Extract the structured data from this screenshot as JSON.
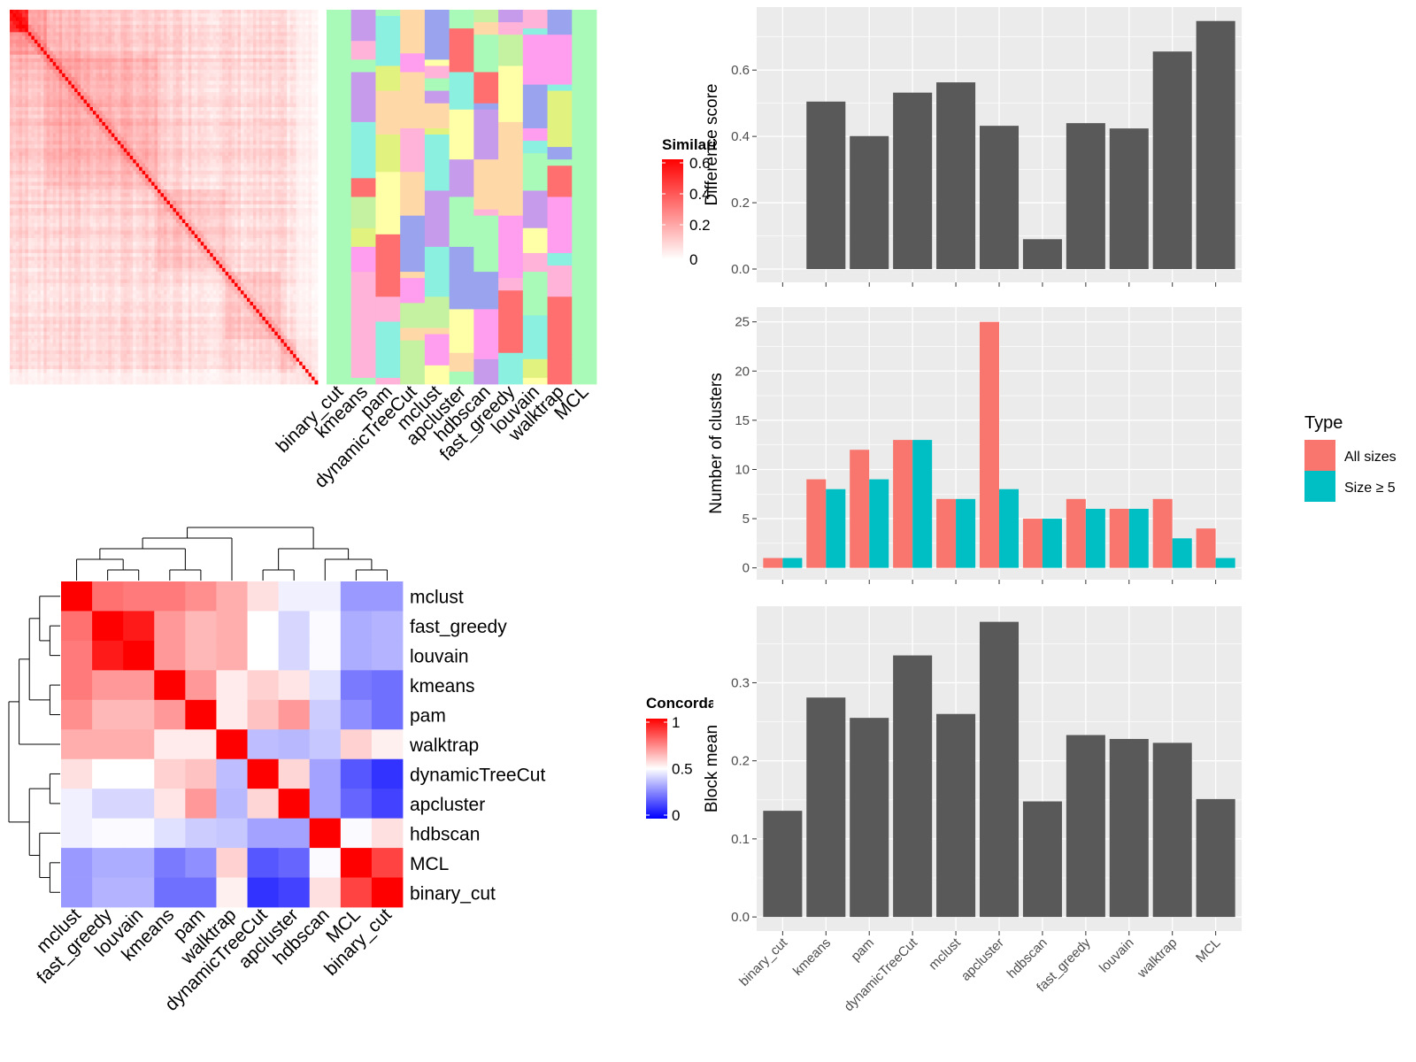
{
  "colors": {
    "panel_bg": "#EBEBEB",
    "grid": "#FFFFFF",
    "bar": "#595959",
    "all_sizes": "#F8766D",
    "size_ge5": "#00BFC4",
    "similarity_high": "#FF0000",
    "concordance_high": "#FF0000",
    "concordance_mid": "#FFFFFF",
    "concordance_low": "#0000FF"
  },
  "similarity_legend": {
    "title": "Similarity",
    "ticks": [
      "0",
      "0.2",
      "0.4",
      "0.6"
    ]
  },
  "concordance_legend": {
    "title": "Concordance",
    "ticks": [
      "0",
      "0.5",
      "1"
    ]
  },
  "label_heatmap_methods": [
    "binary_cut",
    "kmeans",
    "pam",
    "dynamicTreeCut",
    "mclust",
    "apcluster",
    "hdbscan",
    "fast_greedy",
    "louvain",
    "walktrap",
    "MCL"
  ],
  "chart_data": [
    {
      "type": "heatmap",
      "name": "similarity-matrix",
      "size": 100,
      "value_range": [
        0,
        0.6
      ],
      "diagonal_value": 0.6
    },
    {
      "type": "heatmap",
      "name": "concordance-matrix",
      "rows": [
        "mclust",
        "fast_greedy",
        "louvain",
        "kmeans",
        "pam",
        "walktrap",
        "dynamicTreeCut",
        "apcluster",
        "hdbscan",
        "MCL",
        "binary_cut"
      ],
      "columns": [
        "mclust",
        "fast_greedy",
        "louvain",
        "kmeans",
        "pam",
        "walktrap",
        "dynamicTreeCut",
        "apcluster",
        "hdbscan",
        "MCL",
        "binary_cut"
      ],
      "values": [
        [
          1.0,
          0.78,
          0.76,
          0.76,
          0.72,
          0.66,
          0.56,
          0.47,
          0.47,
          0.3,
          0.3
        ],
        [
          0.78,
          1.0,
          0.95,
          0.7,
          0.64,
          0.66,
          0.5,
          0.42,
          0.49,
          0.34,
          0.35
        ],
        [
          0.76,
          0.95,
          1.0,
          0.7,
          0.64,
          0.66,
          0.5,
          0.42,
          0.49,
          0.34,
          0.35
        ],
        [
          0.76,
          0.7,
          0.7,
          1.0,
          0.7,
          0.54,
          0.59,
          0.55,
          0.44,
          0.24,
          0.22
        ],
        [
          0.72,
          0.64,
          0.64,
          0.7,
          1.0,
          0.54,
          0.62,
          0.7,
          0.4,
          0.28,
          0.22
        ],
        [
          0.66,
          0.66,
          0.66,
          0.54,
          0.54,
          1.0,
          0.37,
          0.36,
          0.39,
          0.59,
          0.53
        ],
        [
          0.56,
          0.5,
          0.5,
          0.59,
          0.62,
          0.37,
          1.0,
          0.58,
          0.32,
          0.17,
          0.1
        ],
        [
          0.47,
          0.42,
          0.42,
          0.55,
          0.7,
          0.36,
          0.58,
          1.0,
          0.32,
          0.2,
          0.13
        ],
        [
          0.47,
          0.49,
          0.49,
          0.44,
          0.4,
          0.39,
          0.32,
          0.32,
          1.0,
          0.49,
          0.56
        ],
        [
          0.3,
          0.34,
          0.34,
          0.24,
          0.28,
          0.59,
          0.17,
          0.2,
          0.49,
          1.0,
          0.87
        ],
        [
          0.3,
          0.35,
          0.35,
          0.22,
          0.22,
          0.53,
          0.1,
          0.13,
          0.56,
          0.87,
          1.0
        ]
      ],
      "value_range": [
        0,
        1
      ]
    },
    {
      "type": "bar",
      "name": "difference-score",
      "categories": [
        "binary_cut",
        "kmeans",
        "pam",
        "dynamicTreeCut",
        "mclust",
        "apcluster",
        "hdbscan",
        "fast_greedy",
        "louvain",
        "walktrap",
        "MCL"
      ],
      "values": [
        0.0,
        0.505,
        0.401,
        0.532,
        0.563,
        0.432,
        0.09,
        0.44,
        0.424,
        0.656,
        0.748
      ],
      "xlabel": "",
      "ylabel": "Difference score",
      "ylim": [
        -0.04,
        0.79
      ],
      "yticks": [
        "0.0",
        "0.2",
        "0.4",
        "0.6"
      ],
      "grid": true
    },
    {
      "type": "bar",
      "name": "number-of-clusters",
      "categories": [
        "binary_cut",
        "kmeans",
        "pam",
        "dynamicTreeCut",
        "mclust",
        "apcluster",
        "hdbscan",
        "fast_greedy",
        "louvain",
        "walktrap",
        "MCL"
      ],
      "series": [
        {
          "name": "All sizes",
          "values": [
            1,
            9,
            12,
            13,
            7,
            25,
            5,
            7,
            6,
            7,
            4
          ]
        },
        {
          "name": "Size ≥ 5",
          "values": [
            1,
            8,
            9,
            13,
            7,
            8,
            5,
            6,
            6,
            3,
            1
          ]
        }
      ],
      "xlabel": "",
      "ylabel": "Number of clusters",
      "ylim": [
        -1.2,
        26.5
      ],
      "yticks": [
        "0",
        "5",
        "10",
        "15",
        "20",
        "25"
      ],
      "legend": {
        "title": "Type",
        "position": "right"
      },
      "grid": true
    },
    {
      "type": "bar",
      "name": "block-mean",
      "categories": [
        "binary_cut",
        "kmeans",
        "pam",
        "dynamicTreeCut",
        "mclust",
        "apcluster",
        "hdbscan",
        "fast_greedy",
        "louvain",
        "walktrap",
        "MCL"
      ],
      "values": [
        0.136,
        0.281,
        0.255,
        0.335,
        0.26,
        0.378,
        0.148,
        0.233,
        0.228,
        0.223,
        0.151
      ],
      "xlabel": "",
      "ylabel": "Block mean",
      "ylim": [
        -0.018,
        0.398
      ],
      "yticks": [
        "0.0",
        "0.1",
        "0.2",
        "0.3"
      ],
      "grid": true
    }
  ]
}
